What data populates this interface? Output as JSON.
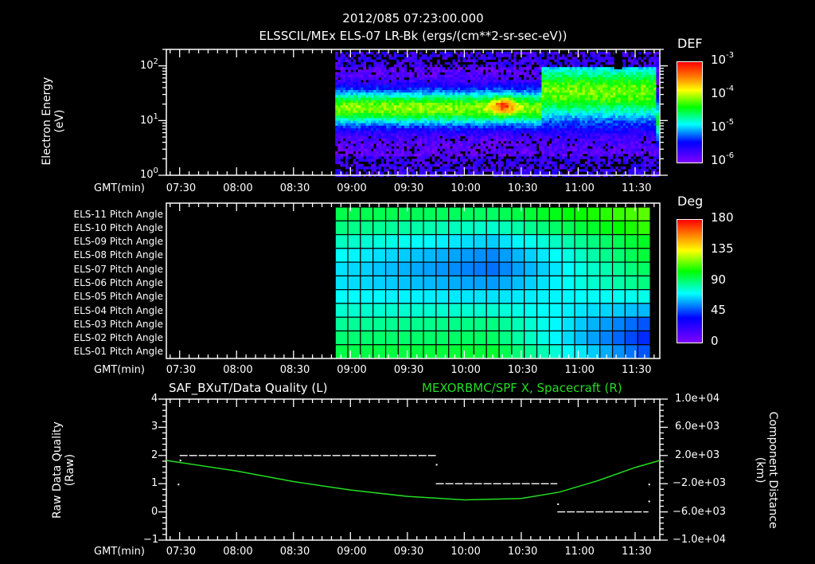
{
  "header": {
    "timestamp": "2012/085 07:23:00.000",
    "subtitle": "ELSSCIL/MEx ELS-07 LR-Bk  (ergs/(cm**2-sr-sec-eV))"
  },
  "colors": {
    "background": "#000000",
    "axes": "#ffffff",
    "spacecraft_series": "#22dd22",
    "quality_series": "#ffffff"
  },
  "chart_data": [
    {
      "type": "heatmap",
      "name": "electron-energy-spectrogram",
      "title": "ELSSCIL/MEx ELS-07 LR-Bk (ergs/(cm**2-sr-sec-eV))",
      "xlabel": "GMT(min)",
      "ylabel": "Electron Energy (eV)",
      "yscale": "log",
      "ylim": [
        1,
        200
      ],
      "yticks": [
        "10^0",
        "10^1",
        "10^2"
      ],
      "xticks": [
        "07:30",
        "08:00",
        "08:30",
        "09:00",
        "09:30",
        "10:00",
        "10:30",
        "11:00",
        "11:30"
      ],
      "xrange": [
        "07:23",
        "11:43"
      ],
      "data_start": "08:52",
      "colorbar": {
        "label": "DEF",
        "scale": "log",
        "ticks": [
          "10^-3",
          "10^-4",
          "10^-5",
          "10^-6"
        ],
        "range": [
          1e-06,
          0.001
        ]
      },
      "features": [
        {
          "time": "10:20",
          "energy_eV": 20,
          "level": "~5e-4 (orange peak)"
        },
        {
          "time": "08:52-10:40",
          "energy_eV": "10-30",
          "level": "~1e-4 (green band)"
        },
        {
          "time": "10:45-11:15",
          "energy_eV": "5-150",
          "level": "~5e-5 (vertical bursts)"
        }
      ]
    },
    {
      "type": "heatmap",
      "name": "pitch-angle-grid",
      "xlabel": "GMT(min)",
      "rows": [
        "ELS-11 Pitch Angle",
        "ELS-10 Pitch Angle",
        "ELS-09 Pitch Angle",
        "ELS-08 Pitch Angle",
        "ELS-07 Pitch Angle",
        "ELS-06 Pitch Angle",
        "ELS-05 Pitch Angle",
        "ELS-04 Pitch Angle",
        "ELS-03 Pitch Angle",
        "ELS-02 Pitch Angle",
        "ELS-01 Pitch Angle"
      ],
      "xticks": [
        "07:30",
        "08:00",
        "08:30",
        "09:00",
        "09:30",
        "10:00",
        "10:30",
        "11:00",
        "11:30"
      ],
      "data_start": "08:52",
      "data_end": "11:38",
      "columns": 25,
      "colorbar": {
        "label": "Deg",
        "ticks": [
          "180",
          "135",
          "90",
          "45",
          "0"
        ],
        "range": [
          0,
          180
        ]
      },
      "values_deg_by_row_start_mid_end": [
        [
          95,
          92,
          115
        ],
        [
          88,
          78,
          110
        ],
        [
          80,
          65,
          100
        ],
        [
          72,
          55,
          97
        ],
        [
          68,
          52,
          92
        ],
        [
          68,
          58,
          88
        ],
        [
          72,
          68,
          75
        ],
        [
          78,
          78,
          62
        ],
        [
          85,
          88,
          48
        ],
        [
          90,
          92,
          42
        ],
        [
          95,
          98,
          48
        ]
      ]
    },
    {
      "type": "line",
      "name": "data-quality-and-spacecraft-x",
      "title_left": "SAF_BXuT/Data Quality (L)",
      "title_right": "MEXORBMC/SPF X, Spacecraft (R)",
      "xlabel": "GMT(min)",
      "ylabel_left": "Raw Data Quality (Raw)",
      "ylabel_right": "Component Distance (km)",
      "ylim_left": [
        -1,
        4
      ],
      "yticks_left": [
        "4",
        "3",
        "2",
        "1",
        "0",
        "-1"
      ],
      "ylim_right": [
        -10000,
        10000
      ],
      "yticks_right": [
        "1.0e+04",
        "6.0e+03",
        "2.0e+03",
        "-2.0e+03",
        "-6.0e+03",
        "-1.0e+04"
      ],
      "xticks": [
        "07:30",
        "08:00",
        "08:30",
        "09:00",
        "09:30",
        "10:00",
        "10:30",
        "11:00",
        "11:30"
      ],
      "series": [
        {
          "name": "Data Quality (L)",
          "color": "#ffffff",
          "segments": [
            {
              "from": "07:30",
              "to": "09:45",
              "value": 2
            },
            {
              "from": "09:45",
              "to": "10:49",
              "value": 1
            },
            {
              "from": "10:49",
              "to": "11:37",
              "value": 0
            }
          ]
        },
        {
          "name": "SPF X, Spacecraft (R)",
          "color": "#22dd22",
          "x": [
            "07:23",
            "08:00",
            "08:30",
            "09:00",
            "09:30",
            "10:00",
            "10:30",
            "10:50",
            "11:10",
            "11:30",
            "11:43"
          ],
          "values": [
            1300,
            -200,
            -1700,
            -2900,
            -3800,
            -4300,
            -4100,
            -3200,
            -1600,
            300,
            1300
          ]
        }
      ]
    }
  ],
  "panels": {
    "energy": {
      "ylabel_line1": "Electron Energy",
      "ylabel_line2": "(eV)",
      "xlabel": "GMT(min)",
      "yticks": [
        {
          "base": "10",
          "exp": "2"
        },
        {
          "base": "10",
          "exp": "1"
        },
        {
          "base": "10",
          "exp": "0"
        }
      ],
      "cb_title": "DEF",
      "cb_ticks": [
        {
          "base": "10",
          "exp": "-3"
        },
        {
          "base": "10",
          "exp": "-4"
        },
        {
          "base": "10",
          "exp": "-5"
        },
        {
          "base": "10",
          "exp": "-6"
        }
      ]
    },
    "pitch": {
      "xlabel": "GMT(min)",
      "cb_title": "Deg",
      "cb_ticks": [
        "180",
        "135",
        "90",
        "45",
        "0"
      ]
    },
    "quality": {
      "xlabel": "GMT(min)",
      "title_left": "SAF_BXuT/Data Quality (L)",
      "title_right": "MEXORBMC/SPF X, Spacecraft (R)",
      "ylabel_left_line1": "Raw Data Quality",
      "ylabel_left_line2": "(Raw)",
      "ylabel_right_line1": "Component Distance",
      "ylabel_right_line2": "(km)",
      "yticks_left": [
        "4",
        "3",
        "2",
        "1",
        "0",
        "−1"
      ],
      "yticks_right": [
        "1.0e+04",
        "6.0e+03",
        "2.0e+03",
        "−2.0e+03",
        "−6.0e+03",
        "−1.0e+04"
      ]
    },
    "time_ticks": [
      "07:30",
      "08:00",
      "08:30",
      "09:00",
      "09:30",
      "10:00",
      "10:30",
      "11:00",
      "11:30"
    ]
  }
}
